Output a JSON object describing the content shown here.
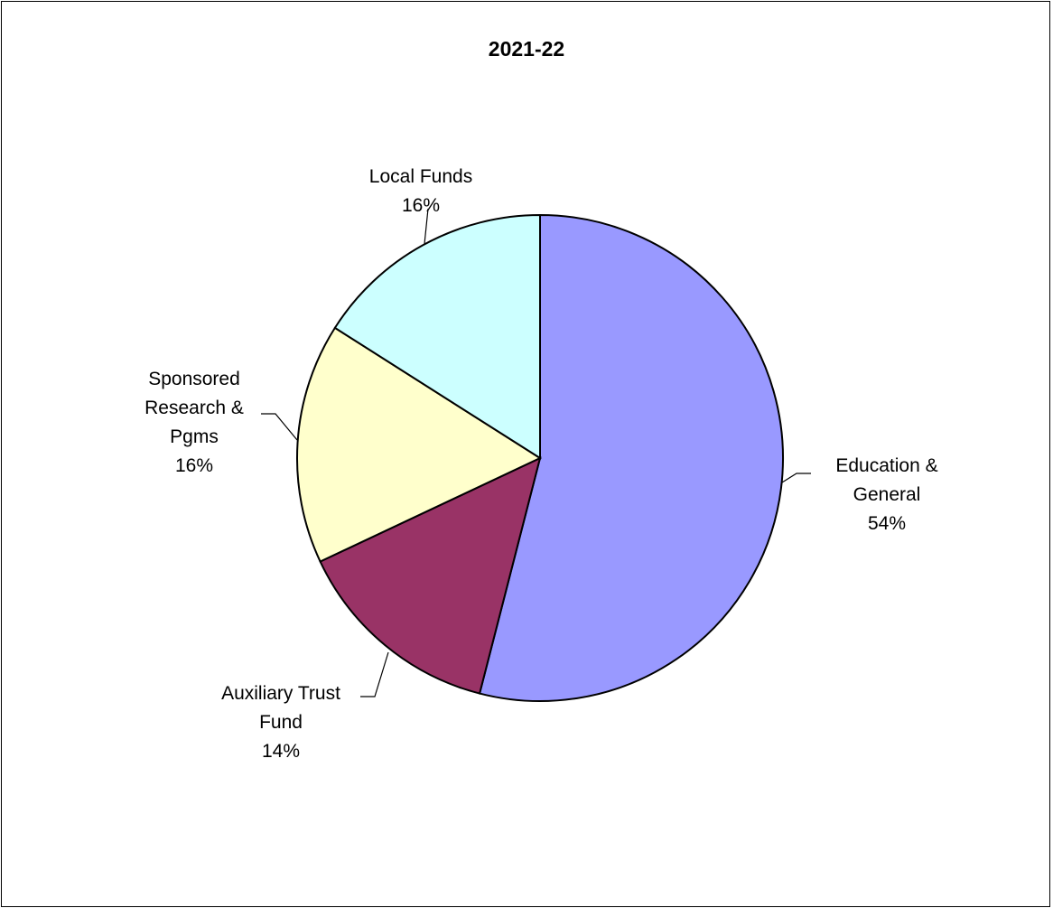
{
  "chart_data": {
    "type": "pie",
    "title": "2021-22",
    "start_angle_deg": 0,
    "direction": "clockwise",
    "slices": [
      {
        "label_lines": [
          "Education &",
          "General"
        ],
        "percent_label": "54%",
        "value": 54,
        "color": "#9999ff"
      },
      {
        "label_lines": [
          "Auxiliary Trust",
          "Fund"
        ],
        "percent_label": "14%",
        "value": 14,
        "color": "#993366"
      },
      {
        "label_lines": [
          "Sponsored",
          "Research &",
          "Pgms"
        ],
        "percent_label": "16%",
        "value": 16,
        "color": "#ffffcc"
      },
      {
        "label_lines": [
          "Local Funds"
        ],
        "percent_label": "16%",
        "value": 16,
        "color": "#ccffff"
      }
    ]
  }
}
